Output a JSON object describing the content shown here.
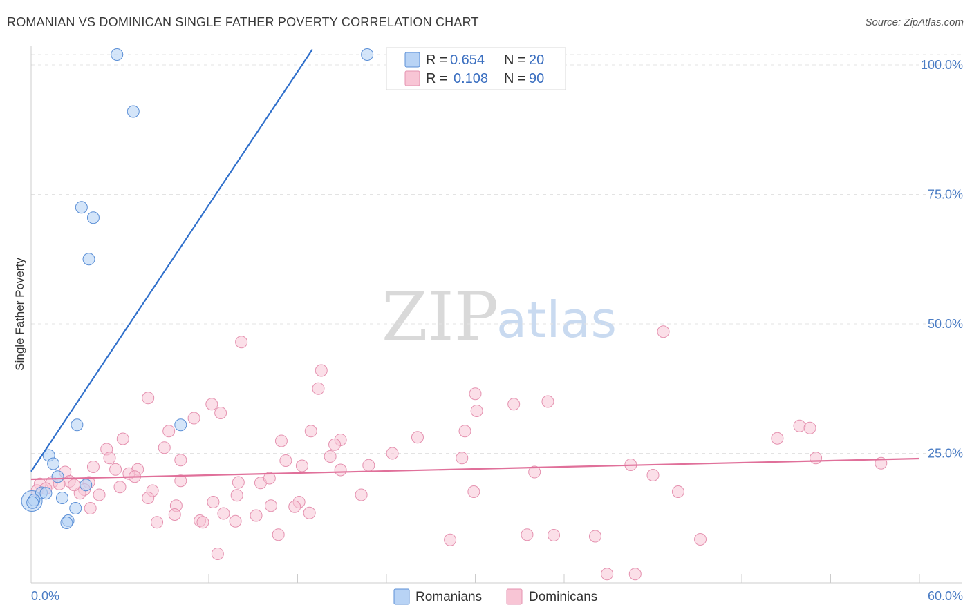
{
  "title": "ROMANIAN VS DOMINICAN SINGLE FATHER POVERTY CORRELATION CHART",
  "source": "Source: ZipAtlas.com",
  "watermark": {
    "zip": "ZIP",
    "atlas": "atlas"
  },
  "legend": {
    "romanians": {
      "r_label": "R = ",
      "r_value": "0.654",
      "n_label": "N = ",
      "n_value": "20"
    },
    "dominicans": {
      "r_label": "R = ",
      "r_value": "0.108",
      "n_label": "N = ",
      "n_value": "90"
    }
  },
  "bottom_legend": {
    "romanians": "Romanians",
    "dominicans": "Dominicans"
  },
  "colors": {
    "romanian_fill": "#b8d3f5",
    "romanian_stroke": "#5b8fd6",
    "romanian_line": "#2f6fcb",
    "dominican_fill": "#f8c5d5",
    "dominican_stroke": "#e592b0",
    "dominican_line": "#e0709a",
    "axis_text": "#4a7cc4",
    "grid": "#e3e3e3"
  },
  "chart_data": {
    "type": "scatter",
    "xlabel": "",
    "ylabel": "Single Father Poverty",
    "xlim": [
      0,
      60
    ],
    "ylim": [
      0,
      102
    ],
    "x_tick_labels": [
      "0.0%",
      "60.0%"
    ],
    "y_ticks": [
      25,
      50,
      75,
      100
    ],
    "y_tick_labels": [
      "25.0%",
      "50.0%",
      "75.0%",
      "100.0%"
    ],
    "series": [
      {
        "name": "Romanians",
        "r": 0.654,
        "n": 20,
        "trend": {
          "x0": 0,
          "y0": 21.5,
          "x1": 19,
          "y1": 103
        },
        "points": [
          [
            5.8,
            102
          ],
          [
            22.7,
            102
          ],
          [
            6.9,
            91
          ],
          [
            3.4,
            72.5
          ],
          [
            4.2,
            70.5
          ],
          [
            3.9,
            62.5
          ],
          [
            3.1,
            30.5
          ],
          [
            10.1,
            30.5
          ],
          [
            1.2,
            24.6
          ],
          [
            1.5,
            23
          ],
          [
            1.8,
            20.5
          ],
          [
            0.7,
            17.4
          ],
          [
            1.0,
            17.3
          ],
          [
            3.7,
            18.9
          ],
          [
            2.1,
            16.4
          ],
          [
            3.0,
            14.4
          ],
          [
            2.5,
            12.0
          ],
          [
            2.4,
            11.6
          ],
          [
            0.2,
            16.0
          ],
          [
            0.1,
            15.5
          ]
        ],
        "big_point": [
          0.05,
          15.8
        ]
      },
      {
        "name": "Dominicans",
        "r": 0.108,
        "n": 90,
        "trend": {
          "x0": 0,
          "y0": 20.0,
          "x1": 60,
          "y1": 24.0
        },
        "points": [
          [
            14.2,
            46.5
          ],
          [
            42.7,
            48.5
          ],
          [
            19.6,
            41.0
          ],
          [
            19.4,
            37.5
          ],
          [
            7.9,
            35.7
          ],
          [
            12.2,
            34.5
          ],
          [
            12.8,
            32.8
          ],
          [
            30.0,
            36.5
          ],
          [
            32.6,
            34.5
          ],
          [
            34.9,
            35.0
          ],
          [
            30.1,
            33.2
          ],
          [
            11.0,
            31.8
          ],
          [
            18.9,
            29.3
          ],
          [
            29.3,
            29.3
          ],
          [
            9.3,
            29.3
          ],
          [
            16.9,
            27.4
          ],
          [
            26.1,
            28.1
          ],
          [
            20.9,
            27.6
          ],
          [
            20.5,
            26.7
          ],
          [
            6.2,
            27.8
          ],
          [
            9.0,
            26.1
          ],
          [
            50.4,
            27.9
          ],
          [
            51.9,
            30.3
          ],
          [
            52.6,
            29.9
          ],
          [
            5.1,
            25.8
          ],
          [
            24.4,
            25.0
          ],
          [
            5.3,
            24.1
          ],
          [
            10.1,
            23.7
          ],
          [
            17.2,
            23.6
          ],
          [
            20.2,
            24.4
          ],
          [
            29.1,
            24.1
          ],
          [
            53.0,
            24.1
          ],
          [
            57.4,
            23.1
          ],
          [
            4.2,
            22.4
          ],
          [
            5.7,
            21.9
          ],
          [
            7.2,
            21.9
          ],
          [
            18.3,
            22.6
          ],
          [
            20.9,
            21.8
          ],
          [
            22.8,
            22.7
          ],
          [
            40.5,
            22.8
          ],
          [
            2.3,
            21.4
          ],
          [
            6.6,
            21.1
          ],
          [
            7.0,
            20.5
          ],
          [
            34.0,
            21.4
          ],
          [
            42.0,
            20.8
          ],
          [
            1.4,
            19.4
          ],
          [
            2.6,
            19.6
          ],
          [
            3.9,
            19.4
          ],
          [
            1.9,
            19.1
          ],
          [
            6.0,
            18.5
          ],
          [
            10.1,
            19.7
          ],
          [
            14.0,
            19.4
          ],
          [
            15.5,
            19.3
          ],
          [
            16.1,
            20.2
          ],
          [
            3.6,
            18.0
          ],
          [
            8.2,
            17.8
          ],
          [
            3.3,
            17.3
          ],
          [
            4.6,
            17.0
          ],
          [
            7.9,
            16.4
          ],
          [
            13.9,
            16.9
          ],
          [
            22.3,
            17.0
          ],
          [
            29.9,
            17.6
          ],
          [
            43.7,
            17.6
          ],
          [
            18.1,
            15.6
          ],
          [
            9.8,
            14.9
          ],
          [
            12.3,
            15.6
          ],
          [
            16.2,
            14.9
          ],
          [
            17.8,
            14.7
          ],
          [
            4.0,
            14.4
          ],
          [
            9.7,
            13.2
          ],
          [
            13.0,
            13.4
          ],
          [
            15.2,
            13.0
          ],
          [
            18.8,
            13.5
          ],
          [
            11.4,
            12.0
          ],
          [
            11.6,
            11.7
          ],
          [
            13.8,
            11.9
          ],
          [
            8.5,
            11.7
          ],
          [
            16.7,
            9.3
          ],
          [
            28.3,
            8.3
          ],
          [
            33.5,
            9.3
          ],
          [
            35.3,
            9.2
          ],
          [
            38.1,
            9.0
          ],
          [
            45.2,
            8.4
          ],
          [
            12.6,
            5.6
          ],
          [
            38.9,
            1.7
          ],
          [
            40.8,
            1.7
          ],
          [
            0.6,
            19.1
          ],
          [
            1.0,
            18.2
          ],
          [
            2.9,
            18.9
          ],
          [
            0.4,
            17.8
          ]
        ]
      }
    ]
  }
}
